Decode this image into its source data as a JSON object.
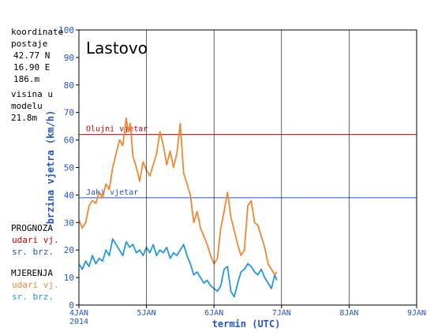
{
  "station_info": {
    "coord_label": "koordinate",
    "coord_label2": "postaje",
    "lat": "42.77 N",
    "lon": "16.90 E",
    "elev": "186.m",
    "model_label": "visina u",
    "model_label2": "modelu",
    "model_elev": "21.8m"
  },
  "legend": {
    "prognoza_title": "PROGNOZA",
    "prognoza_gust": "udari vj.",
    "prognoza_mean": "sr. brz.",
    "mjerenja_title": "MJERENJA",
    "mjerenja_gust": "udari vj.",
    "mjerenja_mean": "sr. brz.",
    "colors": {
      "prognoza_gust": "#cc0000",
      "prognoza_mean": "#2255cc",
      "mjerenja_gust": "#ee8833",
      "mjerenja_mean": "#2299dd"
    }
  },
  "chart_data": {
    "type": "line",
    "title": "Lastovo",
    "xlabel": "termin (UTC)",
    "ylabel": "brzina vjetra (km/h)",
    "ylim": [
      0,
      100
    ],
    "yticks": [
      0,
      10,
      20,
      30,
      40,
      50,
      60,
      70,
      80,
      90,
      100
    ],
    "xlim": [
      4.0,
      9.0
    ],
    "xticks": [
      {
        "value": 4,
        "label": "4JAN"
      },
      {
        "value": 5,
        "label": "5JAN"
      },
      {
        "value": 6,
        "label": "6JAN"
      },
      {
        "value": 7,
        "label": "7JAN"
      },
      {
        "value": 8,
        "label": "8JAN"
      },
      {
        "value": 9,
        "label": "9JAN"
      }
    ],
    "x_year_label": "2014",
    "x_unit": "day of January 2014",
    "thresholds": [
      {
        "name": "Olujni vjetar",
        "value": 62,
        "color": "#cc0000"
      },
      {
        "name": "Jaki vjetar",
        "value": 39,
        "color": "#2255cc"
      }
    ],
    "series": [
      {
        "name": "udari vj.",
        "color": "#ee8833",
        "x": [
          4.0,
          4.05,
          4.1,
          4.15,
          4.2,
          4.25,
          4.3,
          4.35,
          4.4,
          4.45,
          4.5,
          4.55,
          4.6,
          4.65,
          4.7,
          4.73,
          4.76,
          4.8,
          4.85,
          4.9,
          4.95,
          5.0,
          5.05,
          5.1,
          5.15,
          5.2,
          5.25,
          5.3,
          5.35,
          5.4,
          5.45,
          5.5,
          5.55,
          5.6,
          5.65,
          5.7,
          5.75,
          5.8,
          5.85,
          5.9,
          5.95,
          6.0,
          6.05,
          6.1,
          6.15,
          6.2,
          6.25,
          6.3,
          6.35,
          6.4,
          6.45,
          6.5,
          6.55,
          6.6,
          6.65,
          6.7,
          6.75,
          6.8,
          6.85,
          6.9,
          6.93
        ],
        "values": [
          31,
          28,
          30,
          36,
          38,
          37,
          41,
          39,
          44,
          42,
          50,
          55,
          60,
          58,
          68,
          63,
          66,
          54,
          50,
          45,
          52,
          49,
          47,
          51,
          55,
          63,
          58,
          51,
          56,
          50,
          55,
          66,
          48,
          44,
          40,
          30,
          34,
          28,
          25,
          22,
          18,
          15,
          17,
          28,
          34,
          41,
          32,
          27,
          22,
          18,
          20,
          36,
          38,
          30,
          29,
          25,
          21,
          15,
          13,
          11,
          12
        ]
      },
      {
        "name": "sr. brz.",
        "color": "#2299dd",
        "x": [
          4.0,
          4.05,
          4.1,
          4.15,
          4.2,
          4.25,
          4.3,
          4.35,
          4.4,
          4.45,
          4.5,
          4.55,
          4.6,
          4.65,
          4.7,
          4.75,
          4.8,
          4.85,
          4.9,
          4.95,
          5.0,
          5.05,
          5.1,
          5.15,
          5.2,
          5.25,
          5.3,
          5.35,
          5.4,
          5.45,
          5.5,
          5.55,
          5.6,
          5.65,
          5.7,
          5.75,
          5.8,
          5.85,
          5.9,
          5.95,
          6.0,
          6.05,
          6.1,
          6.15,
          6.2,
          6.25,
          6.3,
          6.35,
          6.4,
          6.45,
          6.5,
          6.55,
          6.6,
          6.65,
          6.7,
          6.75,
          6.8,
          6.85,
          6.9,
          6.93
        ],
        "values": [
          15,
          13,
          16,
          14,
          18,
          15,
          17,
          16,
          20,
          18,
          24,
          22,
          20,
          18,
          23,
          21,
          22,
          19,
          20,
          18,
          21,
          19,
          22,
          18,
          20,
          19,
          21,
          17,
          19,
          18,
          20,
          22,
          18,
          15,
          11,
          12,
          10,
          8,
          9,
          7,
          6,
          5,
          7,
          13,
          14,
          5,
          3,
          8,
          12,
          13,
          15,
          14,
          12,
          11,
          13,
          10,
          8,
          6,
          11,
          9
        ]
      }
    ]
  }
}
